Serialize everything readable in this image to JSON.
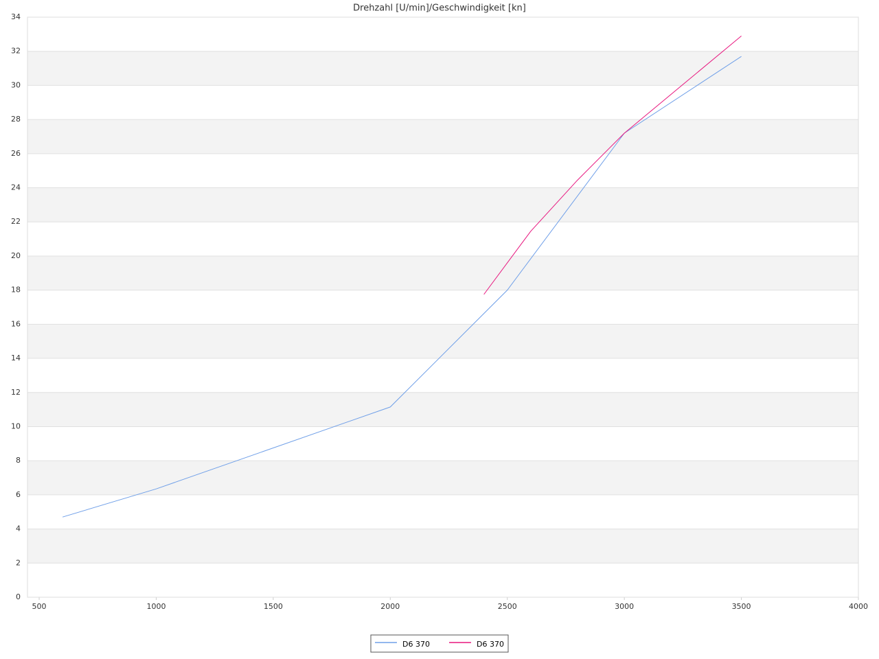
{
  "chart_data": {
    "type": "line",
    "title": "Drehzahl [U/min]/Geschwindigkeit [kn]",
    "xlim": [
      450,
      4000
    ],
    "xticks": [
      500,
      1000,
      1500,
      2000,
      2500,
      3000,
      3500,
      4000
    ],
    "ylim": [
      0,
      34
    ],
    "yticks": [
      0,
      2,
      4,
      6,
      8,
      10,
      12,
      14,
      16,
      18,
      20,
      22,
      24,
      26,
      28,
      30,
      32,
      34
    ],
    "grid": true,
    "legend": "bottom",
    "series": [
      {
        "name": "D6 370",
        "color": "#6f9fe8",
        "x": [
          600,
          1000,
          2000,
          2500,
          3000,
          3500
        ],
        "values": [
          4.7,
          6.35,
          11.15,
          18,
          27.2,
          31.7
        ]
      },
      {
        "name": "D6 370",
        "color": "#e8177f",
        "x": [
          2400,
          2600,
          2800,
          3000,
          3500
        ],
        "values": [
          17.75,
          21.45,
          24.45,
          27.2,
          32.9
        ]
      }
    ]
  }
}
